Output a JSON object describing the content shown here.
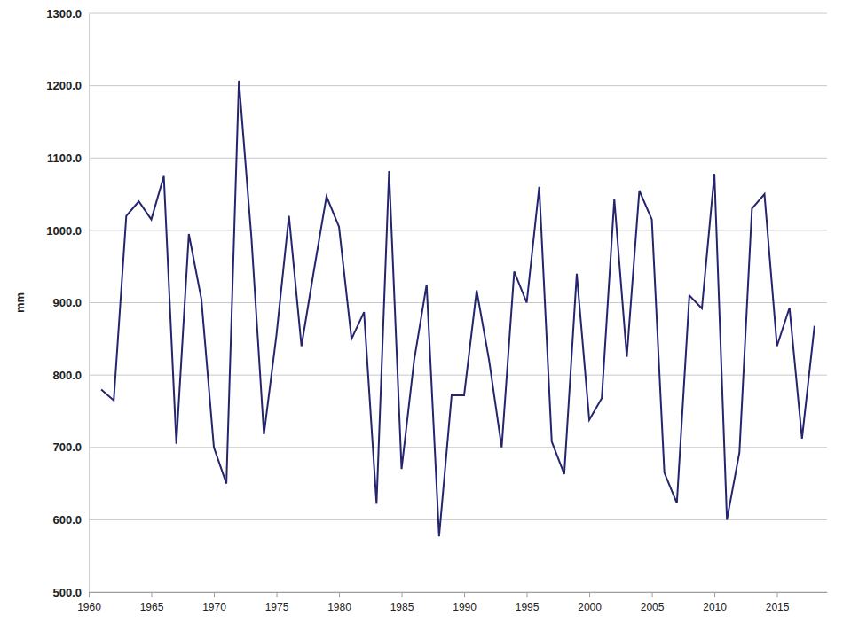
{
  "chart_data": {
    "type": "line",
    "y_label": "mm",
    "x": [
      1961,
      1962,
      1963,
      1964,
      1965,
      1966,
      1967,
      1968,
      1969,
      1970,
      1971,
      1972,
      1973,
      1974,
      1975,
      1976,
      1977,
      1978,
      1979,
      1980,
      1981,
      1982,
      1983,
      1984,
      1985,
      1986,
      1987,
      1988,
      1989,
      1990,
      1991,
      1992,
      1993,
      1994,
      1995,
      1996,
      1997,
      1998,
      1999,
      2000,
      2001,
      2002,
      2003,
      2004,
      2005,
      2006,
      2007,
      2008,
      2009,
      2010,
      2011,
      2012,
      2013,
      2014,
      2015,
      2016,
      2017,
      2018
    ],
    "values": [
      780,
      765,
      1020,
      1040,
      1015,
      1075,
      705,
      995,
      905,
      700,
      650,
      1207,
      990,
      718,
      855,
      1020,
      840,
      945,
      1047,
      1005,
      850,
      887,
      622,
      1082,
      670,
      820,
      925,
      577,
      772,
      772,
      917,
      820,
      700,
      943,
      900,
      1060,
      708,
      663,
      940,
      738,
      768,
      1043,
      825,
      1055,
      1015,
      665,
      623,
      910,
      892,
      1078,
      600,
      693,
      1030,
      1050,
      840,
      893,
      712,
      868
    ],
    "color": "#25256e",
    "xlim": [
      1960,
      2019
    ],
    "xticks": [
      1960,
      1965,
      1970,
      1975,
      1980,
      1985,
      1990,
      1995,
      2000,
      2005,
      2010,
      2015
    ],
    "ylim": [
      500,
      1300
    ],
    "yticks": [
      {
        "value": 500,
        "label": "500.0"
      },
      {
        "value": 600,
        "label": "600.0"
      },
      {
        "value": 700,
        "label": "700.0"
      },
      {
        "value": 800,
        "label": "800.0"
      },
      {
        "value": 900,
        "label": "900.0"
      },
      {
        "value": 1000,
        "label": "1000.0"
      },
      {
        "value": 1100,
        "label": "1100.0"
      },
      {
        "value": 1200,
        "label": "1200.0"
      },
      {
        "value": 1300,
        "label": "1300.0"
      }
    ],
    "grid": true
  }
}
